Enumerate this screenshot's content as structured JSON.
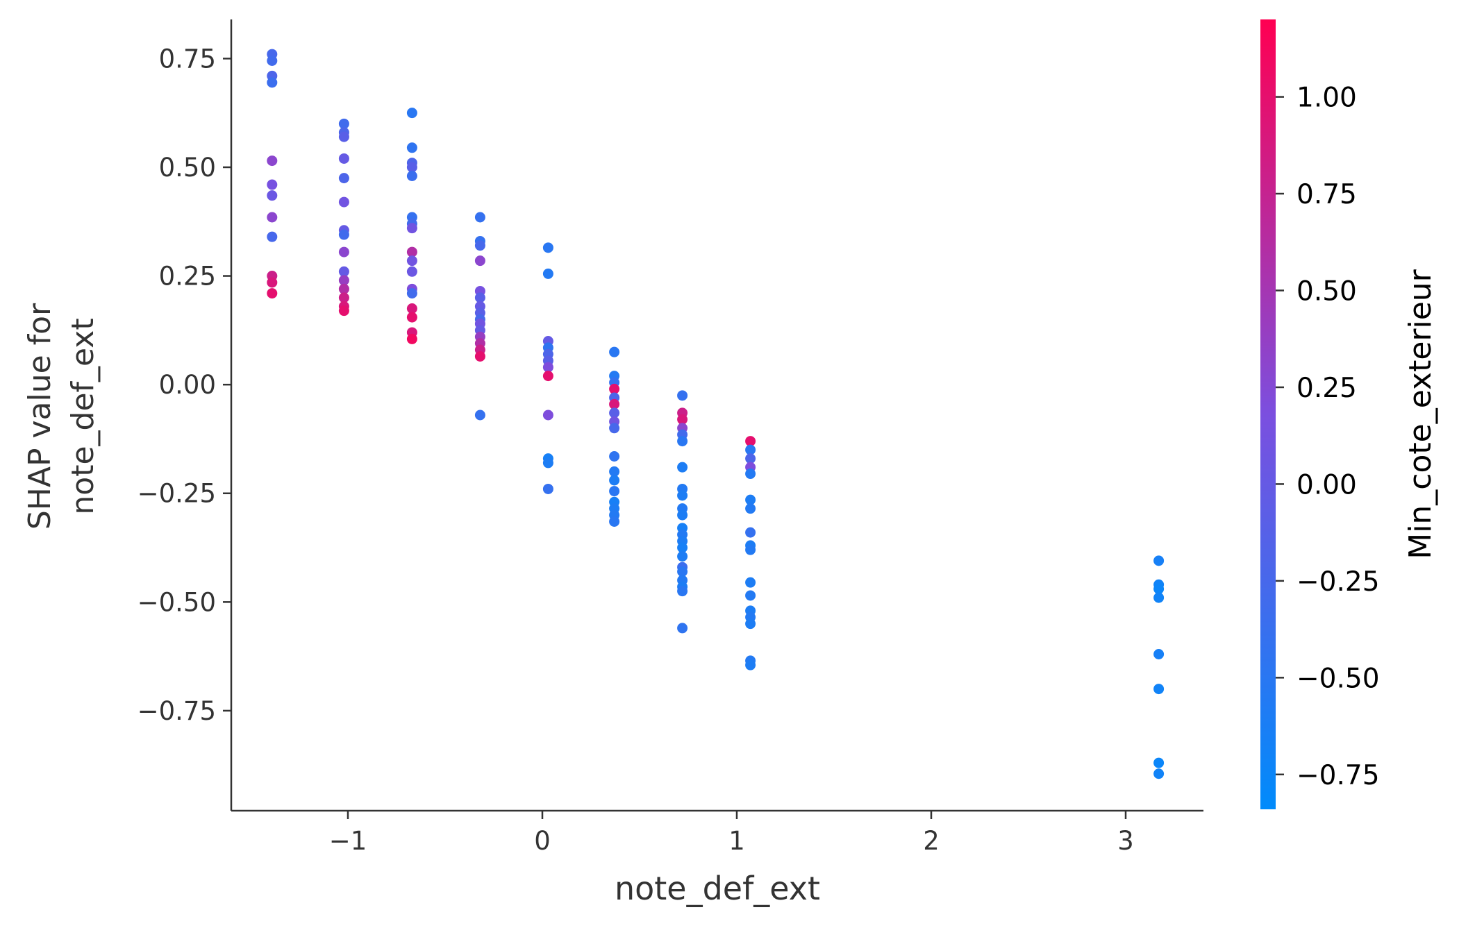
{
  "chart_data": {
    "type": "scatter",
    "xlabel": "note_def_ext",
    "ylabel_lines": [
      "SHAP value for",
      "note_def_ext"
    ],
    "xlim": [
      -1.6,
      3.4
    ],
    "ylim": [
      -0.98,
      0.84
    ],
    "xticks": [
      -1,
      0,
      1,
      2,
      3
    ],
    "xtick_labels": [
      "−1",
      "0",
      "1",
      "2",
      "3"
    ],
    "yticks": [
      0.75,
      0.5,
      0.25,
      0.0,
      -0.25,
      -0.5,
      -0.75
    ],
    "ytick_labels": [
      "0.75",
      "0.50",
      "0.25",
      "0.00",
      "−0.25",
      "−0.50",
      "−0.75"
    ],
    "grid": false,
    "colorbar": {
      "label": "Min_cote_exterieur",
      "range": [
        -0.84,
        1.2
      ],
      "ticks": [
        1.0,
        0.75,
        0.5,
        0.25,
        0.0,
        -0.25,
        -0.5,
        -0.75
      ],
      "tick_labels": [
        "1.00",
        "0.75",
        "0.50",
        "0.25",
        "0.00",
        "−0.25",
        "−0.50",
        "−0.75"
      ],
      "colormap": [
        "#008bfb",
        "#ff0052"
      ]
    },
    "points": [
      {
        "x": -1.39,
        "y": 0.76,
        "c": -0.25
      },
      {
        "x": -1.39,
        "y": 0.745,
        "c": -0.3
      },
      {
        "x": -1.39,
        "y": 0.71,
        "c": -0.2
      },
      {
        "x": -1.39,
        "y": 0.695,
        "c": -0.35
      },
      {
        "x": -1.39,
        "y": 0.515,
        "c": 0.3
      },
      {
        "x": -1.39,
        "y": 0.46,
        "c": 0.15
      },
      {
        "x": -1.39,
        "y": 0.435,
        "c": 0.05
      },
      {
        "x": -1.39,
        "y": 0.385,
        "c": 0.3
      },
      {
        "x": -1.39,
        "y": 0.34,
        "c": -0.25
      },
      {
        "x": -1.39,
        "y": 0.25,
        "c": 0.8
      },
      {
        "x": -1.39,
        "y": 0.235,
        "c": 0.9
      },
      {
        "x": -1.39,
        "y": 0.21,
        "c": 1.0
      },
      {
        "x": -1.02,
        "y": 0.6,
        "c": -0.3
      },
      {
        "x": -1.02,
        "y": 0.58,
        "c": -0.2
      },
      {
        "x": -1.02,
        "y": 0.57,
        "c": -0.1
      },
      {
        "x": -1.02,
        "y": 0.52,
        "c": 0.0
      },
      {
        "x": -1.02,
        "y": 0.475,
        "c": -0.2
      },
      {
        "x": -1.02,
        "y": 0.42,
        "c": 0.1
      },
      {
        "x": -1.02,
        "y": 0.355,
        "c": 0.0
      },
      {
        "x": -1.02,
        "y": 0.345,
        "c": -0.3
      },
      {
        "x": -1.02,
        "y": 0.305,
        "c": 0.3
      },
      {
        "x": -1.02,
        "y": 0.26,
        "c": 0.0
      },
      {
        "x": -1.02,
        "y": 0.24,
        "c": 0.4
      },
      {
        "x": -1.02,
        "y": 0.22,
        "c": 0.6
      },
      {
        "x": -1.02,
        "y": 0.2,
        "c": 0.8
      },
      {
        "x": -1.02,
        "y": 0.18,
        "c": 0.9
      },
      {
        "x": -1.02,
        "y": 0.17,
        "c": 1.0
      },
      {
        "x": -0.67,
        "y": 0.625,
        "c": -0.5
      },
      {
        "x": -0.67,
        "y": 0.545,
        "c": -0.45
      },
      {
        "x": -0.67,
        "y": 0.51,
        "c": -0.2
      },
      {
        "x": -0.67,
        "y": 0.5,
        "c": -0.1
      },
      {
        "x": -0.67,
        "y": 0.48,
        "c": -0.35
      },
      {
        "x": -0.67,
        "y": 0.385,
        "c": -0.4
      },
      {
        "x": -0.67,
        "y": 0.37,
        "c": -0.3
      },
      {
        "x": -0.67,
        "y": 0.36,
        "c": 0.1
      },
      {
        "x": -0.67,
        "y": 0.305,
        "c": 0.6
      },
      {
        "x": -0.67,
        "y": 0.285,
        "c": 0.1
      },
      {
        "x": -0.67,
        "y": 0.26,
        "c": 0.05
      },
      {
        "x": -0.67,
        "y": 0.22,
        "c": 0.2
      },
      {
        "x": -0.67,
        "y": 0.21,
        "c": -0.3
      },
      {
        "x": -0.67,
        "y": 0.175,
        "c": 0.9
      },
      {
        "x": -0.67,
        "y": 0.155,
        "c": 1.0
      },
      {
        "x": -0.67,
        "y": 0.12,
        "c": 0.9
      },
      {
        "x": -0.67,
        "y": 0.105,
        "c": 1.1
      },
      {
        "x": -0.32,
        "y": 0.385,
        "c": -0.4
      },
      {
        "x": -0.32,
        "y": 0.33,
        "c": -0.4
      },
      {
        "x": -0.32,
        "y": 0.32,
        "c": -0.25
      },
      {
        "x": -0.32,
        "y": 0.285,
        "c": 0.3
      },
      {
        "x": -0.32,
        "y": 0.215,
        "c": 0.15
      },
      {
        "x": -0.32,
        "y": 0.2,
        "c": -0.1
      },
      {
        "x": -0.32,
        "y": 0.18,
        "c": 0.0
      },
      {
        "x": -0.32,
        "y": 0.165,
        "c": -0.1
      },
      {
        "x": -0.32,
        "y": 0.15,
        "c": -0.25
      },
      {
        "x": -0.32,
        "y": 0.14,
        "c": 0.1
      },
      {
        "x": -0.32,
        "y": 0.125,
        "c": 0.0
      },
      {
        "x": -0.32,
        "y": 0.11,
        "c": 0.4
      },
      {
        "x": -0.32,
        "y": 0.095,
        "c": 0.6
      },
      {
        "x": -0.32,
        "y": 0.08,
        "c": 0.8
      },
      {
        "x": -0.32,
        "y": 0.065,
        "c": 1.0
      },
      {
        "x": -0.32,
        "y": -0.07,
        "c": -0.4
      },
      {
        "x": 0.03,
        "y": 0.315,
        "c": -0.5
      },
      {
        "x": 0.03,
        "y": 0.255,
        "c": -0.55
      },
      {
        "x": 0.03,
        "y": 0.1,
        "c": 0.0
      },
      {
        "x": 0.03,
        "y": 0.085,
        "c": -0.45
      },
      {
        "x": 0.03,
        "y": 0.07,
        "c": -0.2
      },
      {
        "x": 0.03,
        "y": 0.055,
        "c": -0.1
      },
      {
        "x": 0.03,
        "y": 0.04,
        "c": 0.2
      },
      {
        "x": 0.03,
        "y": 0.02,
        "c": 1.0
      },
      {
        "x": 0.03,
        "y": -0.07,
        "c": 0.2
      },
      {
        "x": 0.03,
        "y": -0.17,
        "c": -0.65
      },
      {
        "x": 0.03,
        "y": -0.18,
        "c": -0.6
      },
      {
        "x": 0.03,
        "y": -0.24,
        "c": -0.4
      },
      {
        "x": 0.37,
        "y": 0.075,
        "c": -0.5
      },
      {
        "x": 0.37,
        "y": 0.02,
        "c": -0.55
      },
      {
        "x": 0.37,
        "y": 0.005,
        "c": -0.4
      },
      {
        "x": 0.37,
        "y": -0.01,
        "c": 1.0
      },
      {
        "x": 0.37,
        "y": -0.03,
        "c": -0.2
      },
      {
        "x": 0.37,
        "y": -0.045,
        "c": 0.9
      },
      {
        "x": 0.37,
        "y": -0.065,
        "c": -0.1
      },
      {
        "x": 0.37,
        "y": -0.085,
        "c": 0.1
      },
      {
        "x": 0.37,
        "y": -0.1,
        "c": -0.25
      },
      {
        "x": 0.37,
        "y": -0.165,
        "c": -0.45
      },
      {
        "x": 0.37,
        "y": -0.2,
        "c": -0.55
      },
      {
        "x": 0.37,
        "y": -0.22,
        "c": -0.6
      },
      {
        "x": 0.37,
        "y": -0.245,
        "c": -0.5
      },
      {
        "x": 0.37,
        "y": -0.27,
        "c": -0.65
      },
      {
        "x": 0.37,
        "y": -0.285,
        "c": -0.6
      },
      {
        "x": 0.37,
        "y": -0.3,
        "c": -0.55
      },
      {
        "x": 0.37,
        "y": -0.315,
        "c": -0.5
      },
      {
        "x": 0.72,
        "y": -0.025,
        "c": -0.4
      },
      {
        "x": 0.72,
        "y": -0.065,
        "c": 0.8
      },
      {
        "x": 0.72,
        "y": -0.08,
        "c": 0.9
      },
      {
        "x": 0.72,
        "y": -0.1,
        "c": 0.3
      },
      {
        "x": 0.72,
        "y": -0.115,
        "c": -0.3
      },
      {
        "x": 0.72,
        "y": -0.13,
        "c": -0.5
      },
      {
        "x": 0.72,
        "y": -0.19,
        "c": -0.6
      },
      {
        "x": 0.72,
        "y": -0.24,
        "c": -0.55
      },
      {
        "x": 0.72,
        "y": -0.255,
        "c": -0.6
      },
      {
        "x": 0.72,
        "y": -0.285,
        "c": -0.55
      },
      {
        "x": 0.72,
        "y": -0.3,
        "c": -0.6
      },
      {
        "x": 0.72,
        "y": -0.33,
        "c": -0.65
      },
      {
        "x": 0.72,
        "y": -0.345,
        "c": -0.55
      },
      {
        "x": 0.72,
        "y": -0.36,
        "c": -0.6
      },
      {
        "x": 0.72,
        "y": -0.375,
        "c": -0.65
      },
      {
        "x": 0.72,
        "y": -0.395,
        "c": -0.6
      },
      {
        "x": 0.72,
        "y": -0.42,
        "c": -0.35
      },
      {
        "x": 0.72,
        "y": -0.43,
        "c": -0.5
      },
      {
        "x": 0.72,
        "y": -0.45,
        "c": -0.55
      },
      {
        "x": 0.72,
        "y": -0.465,
        "c": -0.6
      },
      {
        "x": 0.72,
        "y": -0.475,
        "c": -0.5
      },
      {
        "x": 0.72,
        "y": -0.56,
        "c": -0.45
      },
      {
        "x": 1.07,
        "y": -0.13,
        "c": 1.0
      },
      {
        "x": 1.07,
        "y": -0.15,
        "c": -0.5
      },
      {
        "x": 1.07,
        "y": -0.17,
        "c": -0.2
      },
      {
        "x": 1.07,
        "y": -0.19,
        "c": 0.2
      },
      {
        "x": 1.07,
        "y": -0.205,
        "c": -0.55
      },
      {
        "x": 1.07,
        "y": -0.265,
        "c": -0.6
      },
      {
        "x": 1.07,
        "y": -0.285,
        "c": -0.55
      },
      {
        "x": 1.07,
        "y": -0.34,
        "c": -0.4
      },
      {
        "x": 1.07,
        "y": -0.37,
        "c": -0.6
      },
      {
        "x": 1.07,
        "y": -0.38,
        "c": -0.55
      },
      {
        "x": 1.07,
        "y": -0.455,
        "c": -0.6
      },
      {
        "x": 1.07,
        "y": -0.485,
        "c": -0.55
      },
      {
        "x": 1.07,
        "y": -0.52,
        "c": -0.6
      },
      {
        "x": 1.07,
        "y": -0.535,
        "c": -0.55
      },
      {
        "x": 1.07,
        "y": -0.55,
        "c": -0.6
      },
      {
        "x": 1.07,
        "y": -0.635,
        "c": -0.55
      },
      {
        "x": 1.07,
        "y": -0.645,
        "c": -0.6
      },
      {
        "x": 3.17,
        "y": -0.405,
        "c": -0.65
      },
      {
        "x": 3.17,
        "y": -0.46,
        "c": -0.7
      },
      {
        "x": 3.17,
        "y": -0.47,
        "c": -0.75
      },
      {
        "x": 3.17,
        "y": -0.49,
        "c": -0.7
      },
      {
        "x": 3.17,
        "y": -0.62,
        "c": -0.65
      },
      {
        "x": 3.17,
        "y": -0.7,
        "c": -0.7
      },
      {
        "x": 3.17,
        "y": -0.87,
        "c": -0.75
      },
      {
        "x": 3.17,
        "y": -0.895,
        "c": -0.7
      }
    ]
  }
}
